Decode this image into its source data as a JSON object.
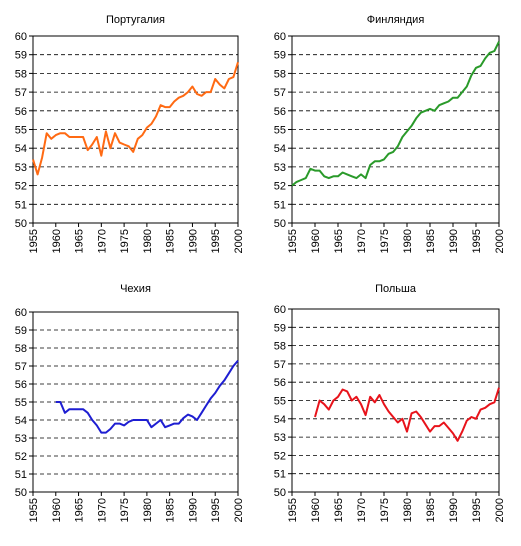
{
  "chart_data": [
    {
      "type": "line",
      "title": "Португалия",
      "color": "#ff6a13",
      "ylim": [
        50,
        60
      ],
      "yticks": [
        "50",
        "51",
        "52",
        "53",
        "54",
        "55",
        "56",
        "57",
        "58",
        "59",
        "60"
      ],
      "xlim": [
        1955,
        2000
      ],
      "xticks": [
        "1955",
        "1960",
        "1965",
        "1970",
        "1975",
        "1980",
        "1985",
        "1990",
        "1995",
        "2000"
      ],
      "grid": "horizontal-dashed",
      "x": [
        1955,
        1956,
        1957,
        1958,
        1959,
        1960,
        1961,
        1962,
        1963,
        1964,
        1965,
        1966,
        1967,
        1968,
        1969,
        1970,
        1971,
        1972,
        1973,
        1974,
        1975,
        1976,
        1977,
        1978,
        1979,
        1980,
        1981,
        1982,
        1983,
        1984,
        1985,
        1986,
        1987,
        1988,
        1989,
        1990,
        1991,
        1992,
        1993,
        1994,
        1995,
        1996,
        1997,
        1998,
        1999,
        2000
      ],
      "values": [
        53.4,
        52.6,
        53.5,
        54.8,
        54.5,
        54.7,
        54.8,
        54.8,
        54.6,
        54.6,
        54.6,
        54.6,
        53.9,
        54.2,
        54.6,
        53.6,
        54.9,
        54.0,
        54.8,
        54.3,
        54.2,
        54.1,
        53.8,
        54.5,
        54.7,
        55.1,
        55.3,
        55.7,
        56.3,
        56.2,
        56.2,
        56.5,
        56.7,
        56.8,
        57.0,
        57.3,
        56.9,
        56.8,
        57.0,
        57.0,
        57.7,
        57.4,
        57.2,
        57.7,
        57.8,
        58.6
      ]
    },
    {
      "type": "line",
      "title": "Финляндия",
      "color": "#2a9a2a",
      "ylim": [
        50,
        60
      ],
      "yticks": [
        "50",
        "51",
        "52",
        "53",
        "54",
        "55",
        "56",
        "57",
        "58",
        "59",
        "60"
      ],
      "xlim": [
        1955,
        2000
      ],
      "xticks": [
        "1955",
        "1960",
        "1965",
        "1970",
        "1975",
        "1980",
        "1985",
        "1990",
        "1995",
        "2000"
      ],
      "grid": "horizontal-dashed",
      "x": [
        1955,
        1956,
        1957,
        1958,
        1959,
        1960,
        1961,
        1962,
        1963,
        1964,
        1965,
        1966,
        1967,
        1968,
        1969,
        1970,
        1971,
        1972,
        1973,
        1974,
        1975,
        1976,
        1977,
        1978,
        1979,
        1980,
        1981,
        1982,
        1983,
        1984,
        1985,
        1986,
        1987,
        1988,
        1989,
        1990,
        1991,
        1992,
        1993,
        1994,
        1995,
        1996,
        1997,
        1998,
        1999,
        2000
      ],
      "values": [
        52.0,
        52.2,
        52.3,
        52.4,
        52.9,
        52.8,
        52.8,
        52.5,
        52.4,
        52.5,
        52.5,
        52.7,
        52.6,
        52.5,
        52.4,
        52.6,
        52.4,
        53.1,
        53.3,
        53.3,
        53.4,
        53.7,
        53.8,
        54.1,
        54.6,
        54.9,
        55.2,
        55.6,
        55.9,
        56.0,
        56.1,
        56.0,
        56.3,
        56.4,
        56.5,
        56.7,
        56.7,
        57.0,
        57.3,
        57.9,
        58.3,
        58.4,
        58.8,
        59.1,
        59.2,
        59.7
      ]
    },
    {
      "type": "line",
      "title": "Чехия",
      "color": "#1e1ed2",
      "ylim": [
        50,
        60
      ],
      "yticks": [
        "50",
        "51",
        "52",
        "53",
        "54",
        "55",
        "56",
        "57",
        "58",
        "59",
        "60"
      ],
      "xlim": [
        1955,
        2000
      ],
      "xticks": [
        "1955",
        "1960",
        "1965",
        "1970",
        "1975",
        "1980",
        "1985",
        "1990",
        "1995",
        "2000"
      ],
      "grid": "horizontal-dashed",
      "x": [
        1960,
        1961,
        1962,
        1963,
        1964,
        1965,
        1966,
        1967,
        1968,
        1969,
        1970,
        1971,
        1972,
        1973,
        1974,
        1975,
        1976,
        1977,
        1978,
        1979,
        1980,
        1981,
        1982,
        1983,
        1984,
        1985,
        1986,
        1987,
        1988,
        1989,
        1990,
        1991,
        1992,
        1993,
        1994,
        1995,
        1996,
        1997,
        1998,
        1999,
        2000
      ],
      "values": [
        55.0,
        55.0,
        54.4,
        54.6,
        54.6,
        54.6,
        54.6,
        54.4,
        54.0,
        53.7,
        53.3,
        53.3,
        53.5,
        53.8,
        53.8,
        53.7,
        53.9,
        54.0,
        54.0,
        54.0,
        54.0,
        53.6,
        53.8,
        54.0,
        53.6,
        53.7,
        53.8,
        53.8,
        54.1,
        54.3,
        54.2,
        54.0,
        54.4,
        54.8,
        55.2,
        55.5,
        55.9,
        56.2,
        56.6,
        57.0,
        57.3
      ]
    },
    {
      "type": "line",
      "title": "Польша",
      "color": "#e8131b",
      "ylim": [
        50,
        60
      ],
      "yticks": [
        "50",
        "51",
        "52",
        "53",
        "54",
        "55",
        "56",
        "57",
        "58",
        "59",
        "60"
      ],
      "xlim": [
        1955,
        2000
      ],
      "xticks": [
        "1955",
        "1960",
        "1965",
        "1970",
        "1975",
        "1980",
        "1985",
        "1990",
        "1995",
        "2000"
      ],
      "grid": "horizontal-dashed",
      "x": [
        1960,
        1961,
        1962,
        1963,
        1964,
        1965,
        1966,
        1967,
        1968,
        1969,
        1970,
        1971,
        1972,
        1973,
        1974,
        1975,
        1976,
        1977,
        1978,
        1979,
        1980,
        1981,
        1982,
        1983,
        1984,
        1985,
        1986,
        1987,
        1988,
        1989,
        1990,
        1991,
        1992,
        1993,
        1994,
        1995,
        1996,
        1997,
        1998,
        1999,
        2000
      ],
      "values": [
        54.1,
        55.0,
        54.8,
        54.5,
        55.0,
        55.2,
        55.6,
        55.5,
        55.0,
        55.2,
        54.8,
        54.2,
        55.2,
        54.9,
        55.3,
        54.8,
        54.4,
        54.1,
        53.8,
        54.0,
        53.3,
        54.3,
        54.4,
        54.1,
        53.7,
        53.3,
        53.6,
        53.6,
        53.8,
        53.5,
        53.2,
        52.8,
        53.3,
        53.9,
        54.1,
        54.0,
        54.5,
        54.6,
        54.8,
        54.9,
        55.7
      ]
    }
  ]
}
